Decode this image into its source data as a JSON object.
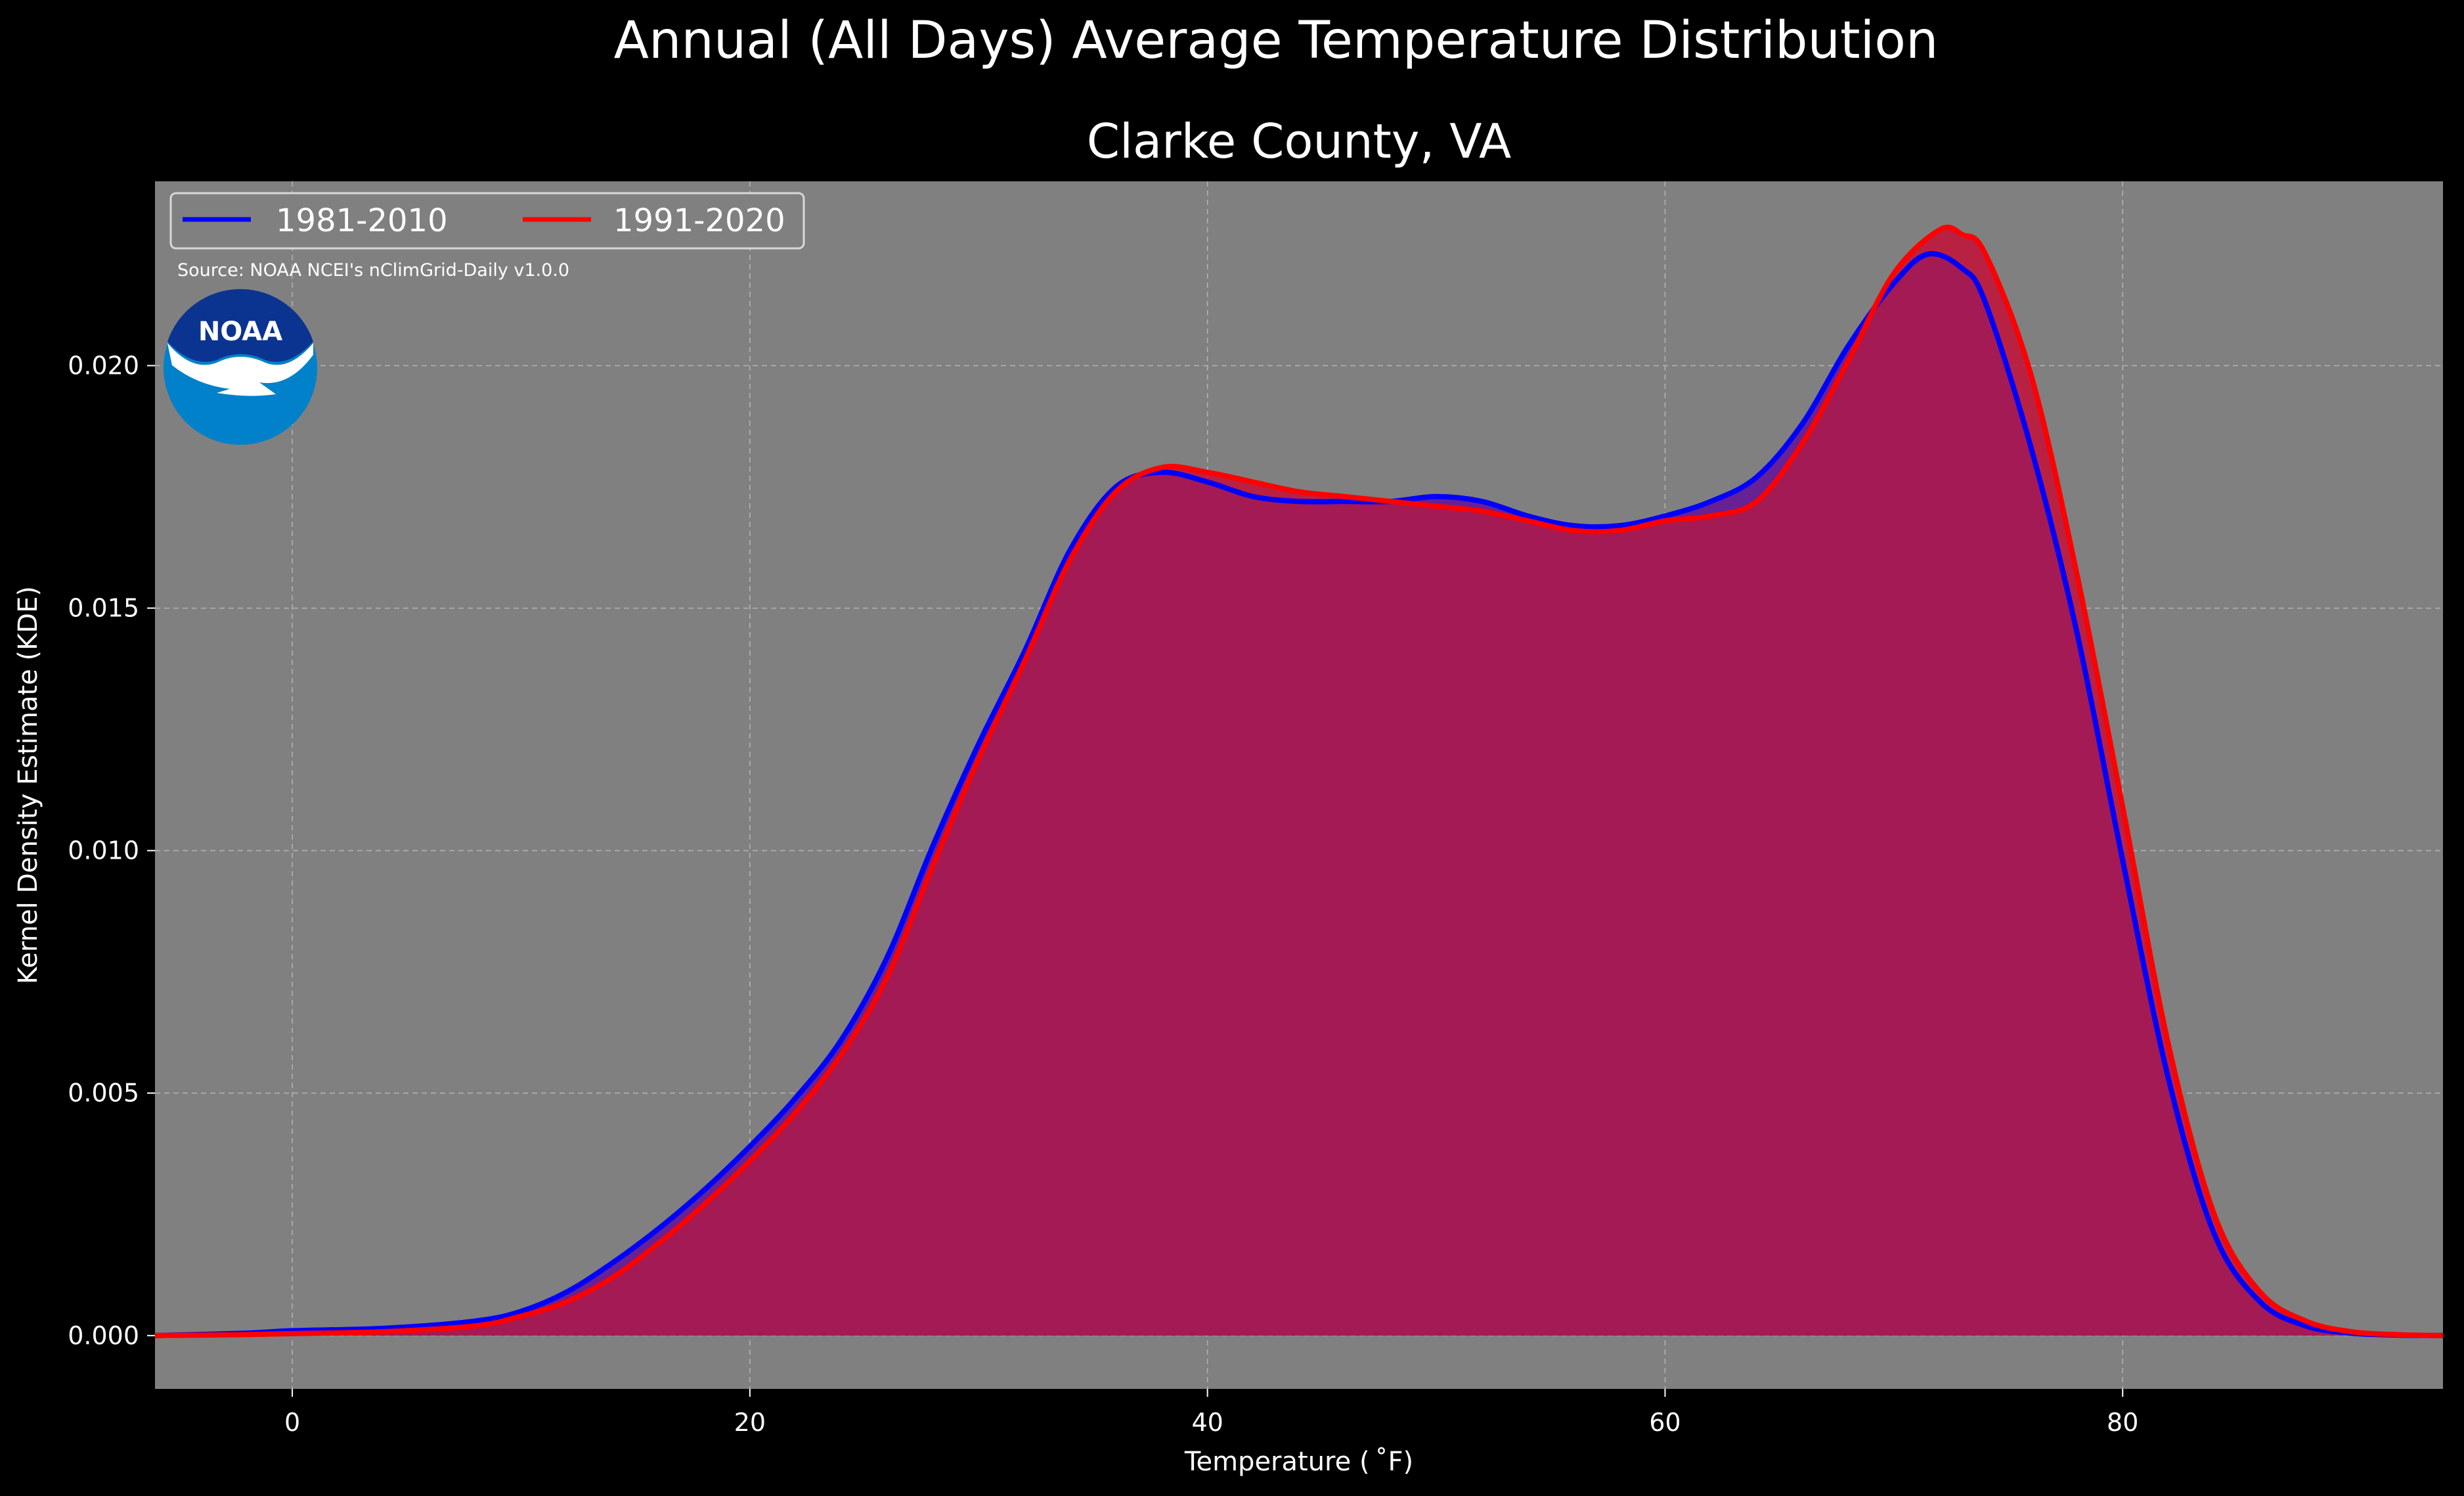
{
  "suptitle": "Annual (All Days) Average Temperature Distribution",
  "subtitle": "Clarke County, VA",
  "source": "Source: NOAA NCEI's nClimGrid-Daily v1.0.0",
  "logo_text": "NOAA",
  "colors": {
    "background": "#000000",
    "plot_bg": "#808080",
    "series1": "#0000ff",
    "series2": "#ff0000",
    "fill": "#9c1f5b"
  },
  "chart_data": {
    "type": "area",
    "xlabel": "Temperature ($^\\circ$F)",
    "xlabel_display": "Temperature ( ˚F)",
    "ylabel": "Kernel Density Estimate (KDE)",
    "xlim": [
      -6,
      94
    ],
    "ylim": [
      -0.0011,
      0.0238
    ],
    "xticks": [
      0,
      20,
      40,
      60,
      80
    ],
    "xtick_labels": [
      "0",
      "20",
      "40",
      "60",
      "80"
    ],
    "yticks": [
      0.0,
      0.005,
      0.01,
      0.015,
      0.02
    ],
    "ytick_labels": [
      "0.000",
      "0.005",
      "0.010",
      "0.015",
      "0.020"
    ],
    "grid": true,
    "legend_placement": "upper-left",
    "series": [
      {
        "name": "1981-2010",
        "x": [
          -6,
          -2,
          0,
          4,
          8,
          10,
          12,
          14,
          16,
          18,
          20,
          22,
          24,
          26,
          28,
          30,
          32,
          34,
          36,
          38,
          40,
          42,
          44,
          46,
          48,
          50,
          52,
          54,
          56,
          58,
          60,
          62,
          64,
          66,
          68,
          70,
          71.5,
          73,
          74,
          76,
          78,
          80,
          82,
          84,
          86,
          88,
          90,
          92,
          94
        ],
        "y": [
          0.0,
          5e-05,
          0.0001,
          0.00015,
          0.0003,
          0.0005,
          0.0009,
          0.0015,
          0.0022,
          0.003,
          0.0039,
          0.0049,
          0.0061,
          0.0078,
          0.0101,
          0.0122,
          0.0141,
          0.0162,
          0.0175,
          0.0178,
          0.0176,
          0.0173,
          0.0172,
          0.0172,
          0.0172,
          0.0173,
          0.0172,
          0.0169,
          0.0167,
          0.0167,
          0.0169,
          0.0172,
          0.0177,
          0.0188,
          0.0204,
          0.0217,
          0.0223,
          0.022,
          0.0213,
          0.0183,
          0.0145,
          0.0098,
          0.0053,
          0.0021,
          0.0007,
          0.0002,
          5e-05,
          1e-05,
          0.0
        ]
      },
      {
        "name": "1991-2020",
        "x": [
          -6,
          -2,
          0,
          4,
          8,
          10,
          12,
          14,
          16,
          18,
          20,
          22,
          24,
          26,
          28,
          30,
          32,
          34,
          36,
          38,
          40,
          42,
          44,
          46,
          48,
          50,
          52,
          54,
          56,
          58,
          60,
          62,
          64,
          66,
          68,
          70,
          72,
          73,
          74,
          76,
          78,
          80,
          82,
          84,
          86,
          88,
          90,
          92,
          94
        ],
        "y": [
          0.0,
          2e-05,
          4e-05,
          8e-05,
          0.0002,
          0.0004,
          0.0007,
          0.0012,
          0.0019,
          0.0027,
          0.0036,
          0.0046,
          0.0058,
          0.0074,
          0.0097,
          0.0119,
          0.0139,
          0.016,
          0.0174,
          0.0179,
          0.0178,
          0.0176,
          0.0174,
          0.0173,
          0.0172,
          0.0171,
          0.017,
          0.0168,
          0.0166,
          0.0166,
          0.0168,
          0.0169,
          0.0172,
          0.0184,
          0.0201,
          0.0219,
          0.0228,
          0.0227,
          0.0223,
          0.0198,
          0.0157,
          0.0109,
          0.006,
          0.0025,
          0.0009,
          0.0003,
          8e-05,
          2e-05,
          0.0
        ]
      }
    ]
  }
}
